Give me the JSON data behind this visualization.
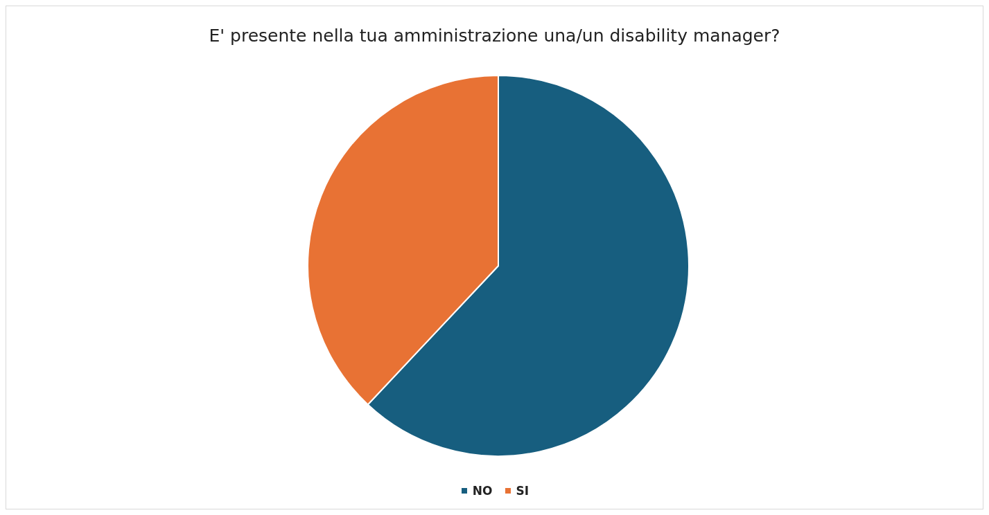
{
  "chart_data": {
    "type": "pie",
    "title": "E' presente nella tua amministrazione una/un disability manager?",
    "categories": [
      "NO",
      "SI"
    ],
    "values": [
      62,
      38
    ],
    "colors": [
      "#175e7f",
      "#e87234"
    ],
    "legend": "bottom"
  }
}
